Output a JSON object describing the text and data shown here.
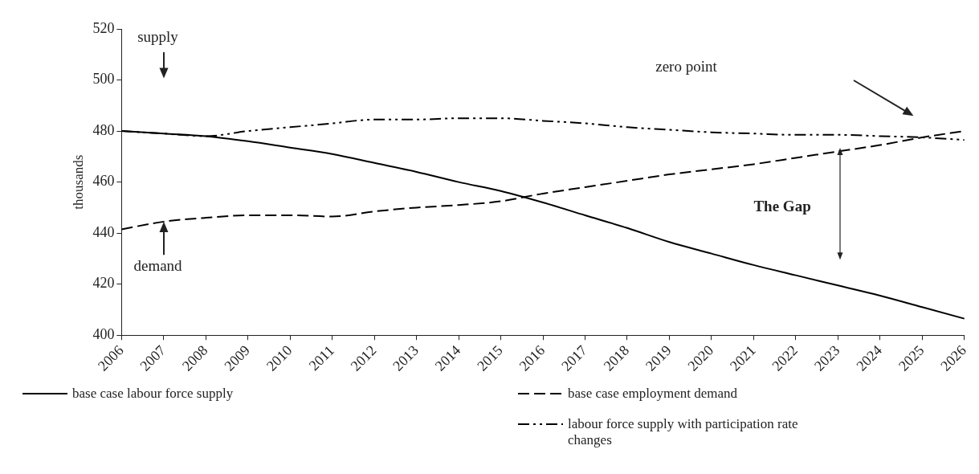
{
  "chart_data": {
    "type": "line",
    "ylabel": "thousands",
    "categories": [
      "2006",
      "2007",
      "2008",
      "2009",
      "2010",
      "2011",
      "2012",
      "2013",
      "2014",
      "2015",
      "2016",
      "2017",
      "2018",
      "2019",
      "2020",
      "2021",
      "2022",
      "2023",
      "2024",
      "2025",
      "2026"
    ],
    "series": [
      {
        "name": "base case labour force supply",
        "color": "#000000",
        "line_style": "solid",
        "values": [
          480,
          479,
          478,
          476,
          473.5,
          471,
          467.5,
          464,
          460,
          456.5,
          452,
          447,
          442,
          436.5,
          432,
          427.5,
          423.5,
          419.5,
          415.5,
          411,
          406.5
        ]
      },
      {
        "name": "base case employment demand",
        "color": "#000000",
        "line_style": "dashed",
        "values": [
          441.5,
          444.5,
          446,
          447,
          447,
          446.5,
          448.5,
          450,
          451,
          452.5,
          455.5,
          458,
          460.5,
          463,
          465,
          467,
          469.5,
          472,
          474.5,
          477.5,
          480
        ]
      },
      {
        "name": "labour force supply with participation rate changes",
        "color": "#000000",
        "line_style": "dashdot",
        "values": [
          480,
          479,
          478,
          480,
          481.5,
          483,
          484.5,
          484.5,
          485,
          485,
          484,
          483,
          481.5,
          480.5,
          479.5,
          479,
          478.5,
          478.5,
          478,
          477.5,
          476.5
        ]
      }
    ],
    "ylim": [
      400,
      520
    ],
    "yticks": [
      400,
      420,
      440,
      460,
      480,
      500,
      520
    ],
    "grid": false,
    "legend": "bottom",
    "marker": "none",
    "annotations": [
      "supply",
      {
        "text": "demand",
        "x": "2007",
        "y": 444.5
      },
      "zero point",
      "The Gap"
    ]
  }
}
